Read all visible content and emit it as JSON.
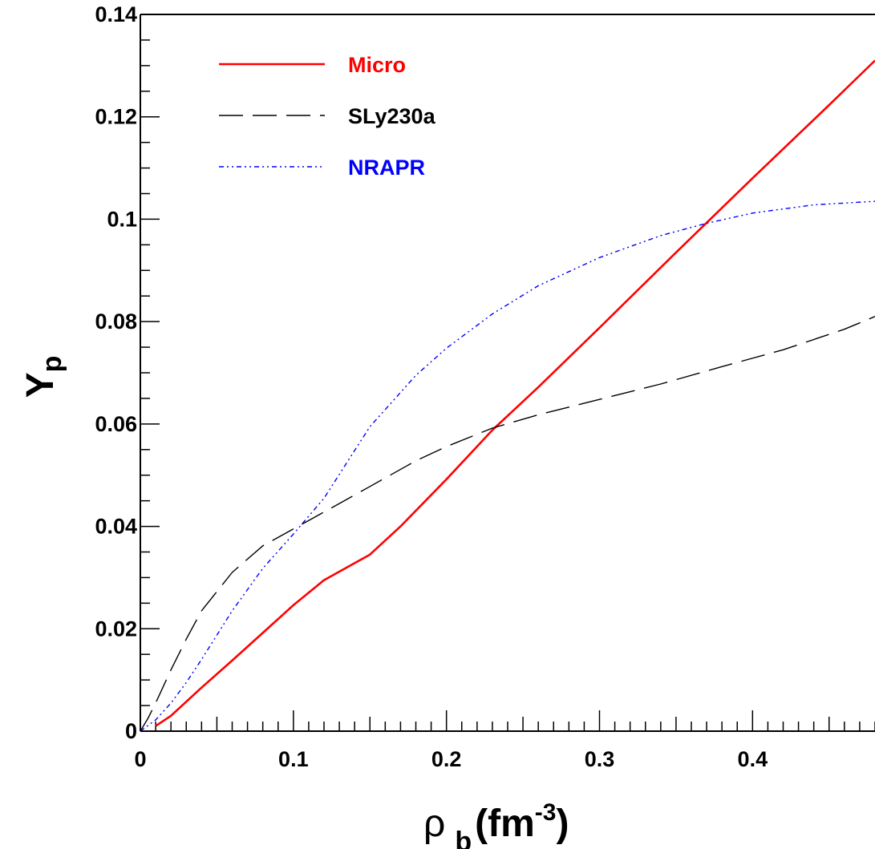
{
  "chart_data": {
    "type": "line",
    "title": "",
    "xlabel": {
      "main": "ρ",
      "sub": "b",
      "unit": "(fm",
      "exponent": "-3",
      "close": ")"
    },
    "ylabel": {
      "main": "Y",
      "sub": "p"
    },
    "xlim": [
      0,
      0.48
    ],
    "ylim": [
      0,
      0.14
    ],
    "x_ticks": [
      {
        "value": 0,
        "label": "0"
      },
      {
        "value": 0.1,
        "label": "0.1"
      },
      {
        "value": 0.2,
        "label": "0.2"
      },
      {
        "value": 0.3,
        "label": "0.3"
      },
      {
        "value": 0.4,
        "label": "0.4"
      }
    ],
    "y_ticks": [
      {
        "value": 0,
        "label": "0"
      },
      {
        "value": 0.02,
        "label": "0.02"
      },
      {
        "value": 0.04,
        "label": "0.04"
      },
      {
        "value": 0.06,
        "label": "0.06"
      },
      {
        "value": 0.08,
        "label": "0.08"
      },
      {
        "value": 0.1,
        "label": "0.1"
      },
      {
        "value": 0.12,
        "label": "0.12"
      },
      {
        "value": 0.14,
        "label": "0.14"
      }
    ],
    "grid": false,
    "legend_position": "top-left",
    "series": [
      {
        "name": "Micro",
        "color": "#ff0000",
        "style": "solid",
        "x": [
          0.01,
          0.02,
          0.04,
          0.06,
          0.08,
          0.1,
          0.12,
          0.15,
          0.17,
          0.2,
          0.23,
          0.26,
          0.3,
          0.35,
          0.4,
          0.45,
          0.48
        ],
        "y": [
          0.001,
          0.003,
          0.0085,
          0.0138,
          0.0192,
          0.0246,
          0.0295,
          0.0345,
          0.04,
          0.0492,
          0.0588,
          0.0672,
          0.0788,
          0.0935,
          0.108,
          0.1223,
          0.131
        ]
      },
      {
        "name": "SLy230a",
        "color": "#000000",
        "style": "dashed",
        "x": [
          0,
          0.005,
          0.01,
          0.02,
          0.03,
          0.04,
          0.06,
          0.08,
          0.1,
          0.12,
          0.15,
          0.18,
          0.2,
          0.23,
          0.26,
          0.3,
          0.34,
          0.38,
          0.42,
          0.46,
          0.48
        ],
        "y": [
          0,
          0.0025,
          0.0055,
          0.012,
          0.018,
          0.0235,
          0.031,
          0.0362,
          0.0395,
          0.0428,
          0.0478,
          0.0528,
          0.0556,
          0.0592,
          0.0618,
          0.0648,
          0.0678,
          0.0712,
          0.0745,
          0.0785,
          0.081
        ]
      },
      {
        "name": "NRAPR",
        "color": "#0000ff",
        "style": "dashdot",
        "x": [
          0,
          0.01,
          0.02,
          0.03,
          0.04,
          0.06,
          0.08,
          0.1,
          0.12,
          0.15,
          0.18,
          0.2,
          0.23,
          0.26,
          0.3,
          0.34,
          0.37,
          0.4,
          0.44,
          0.48
        ],
        "y": [
          0,
          0.0022,
          0.0055,
          0.0095,
          0.014,
          0.0235,
          0.0318,
          0.0385,
          0.0455,
          0.0595,
          0.0695,
          0.0748,
          0.0815,
          0.087,
          0.0925,
          0.0968,
          0.0992,
          0.1012,
          0.1028,
          0.1035
        ]
      }
    ]
  }
}
